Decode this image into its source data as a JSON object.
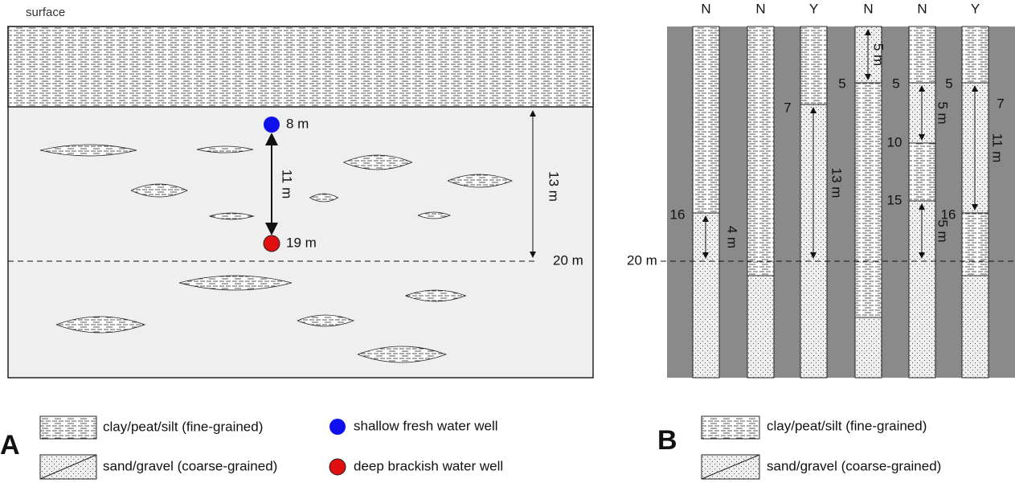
{
  "panel_a": {
    "surface": "surface",
    "depth_line_label": "20 m",
    "wells": [
      {
        "label": "8 m"
      },
      {
        "label": "19 m"
      }
    ],
    "well_gap_label": "11 m",
    "clay_thickness_label": "13 m",
    "panel_label": "A",
    "legend": {
      "clay": "clay/peat/silt (fine-grained)",
      "sand": "sand/gravel (coarse-grained)",
      "shallow_well": "shallow fresh water well",
      "deep_well": "deep brackish water well"
    }
  },
  "panel_b": {
    "panel_label": "B",
    "depth_line_label": "20 m",
    "columns": [
      {
        "label": "N",
        "depth_labels": [
          "16"
        ],
        "thickness_labels": [
          "4 m"
        ]
      },
      {
        "label": "N"
      },
      {
        "label": "Y",
        "depth_labels": [
          "7"
        ],
        "thickness_labels": [
          "13 m"
        ]
      },
      {
        "label": "N",
        "depth_labels": [
          "5"
        ],
        "thickness_labels": [
          "5 m"
        ]
      },
      {
        "label": "N",
        "depth_labels": [
          "5",
          "10",
          "15"
        ],
        "thickness_labels": [
          "5 m",
          "5 m"
        ]
      },
      {
        "label": "Y",
        "depth_labels": [
          "5",
          "7",
          "16"
        ],
        "thickness_labels": [
          "11 m"
        ]
      }
    ],
    "legend": {
      "clay": "clay/peat/silt (fine-grained)",
      "sand": "sand/gravel (coarse-grained)"
    }
  }
}
